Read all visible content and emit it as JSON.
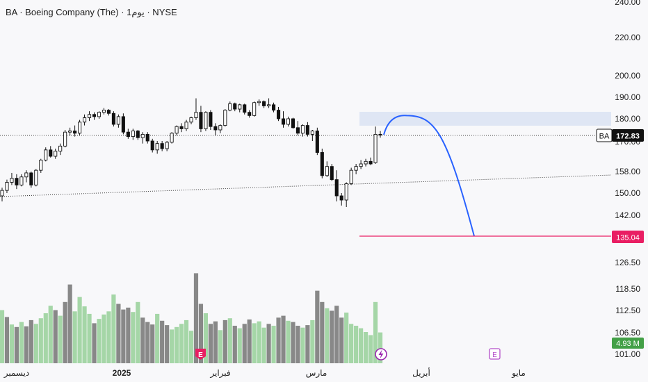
{
  "header": {
    "title": "BA · Boeing Company (The) · 1يوم · NYSE"
  },
  "colors": {
    "background": "#f8f8fa",
    "up_candle": "#ffffff",
    "down_candle": "#111111",
    "volume_up": "#a5d6a7",
    "volume_down": "#888888",
    "projection_curve": "#2962ff",
    "target_line": "#e91e63",
    "resistance_zone": "#dbe3f3",
    "price_badge": "#111111",
    "volume_badge": "#43a047",
    "earnings_marker_past": "#e91e63",
    "earnings_marker_future": "#b44fc9"
  },
  "chart_data": {
    "type": "candlestick",
    "symbol": "BA",
    "price_axis_ticks": [
      "240.00",
      "220.00",
      "200.00",
      "190.00",
      "180.00",
      "170.00",
      "158.00",
      "150.00",
      "142.00",
      "135.04",
      "126.50",
      "118.50",
      "112.50",
      "106.50",
      "101.00"
    ],
    "time_axis_labels": [
      "ديسمبر",
      "2025",
      "فبراير",
      "مارس",
      "أبريل",
      "مايو"
    ],
    "last_price": {
      "symbol": "BA",
      "value": "172.83"
    },
    "target_price": "135.04",
    "volume_label": "4.93 M",
    "earnings_markers": [
      "E",
      "E"
    ],
    "dividend_marker_icon": "lightning-icon",
    "resistance_zone": [
      177,
      182
    ],
    "projection": {
      "from": 172.8,
      "peak": 181.5,
      "to": 135.04
    },
    "candles": [
      [
        149.0,
        152.0,
        147.0,
        151.0
      ],
      [
        151.0,
        155.0,
        150.0,
        154.0
      ],
      [
        154.0,
        157.5,
        153.0,
        155.5
      ],
      [
        155.5,
        157.0,
        151.5,
        153.0
      ],
      [
        153.0,
        157.0,
        152.5,
        156.0
      ],
      [
        156.0,
        158.5,
        154.0,
        157.5
      ],
      [
        157.5,
        158.0,
        152.0,
        153.0
      ],
      [
        153.0,
        159.0,
        152.5,
        158.5
      ],
      [
        158.5,
        163.0,
        157.5,
        162.5
      ],
      [
        162.5,
        167.5,
        162.0,
        166.5
      ],
      [
        166.5,
        168.0,
        163.5,
        164.0
      ],
      [
        164.0,
        167.0,
        163.0,
        166.0
      ],
      [
        166.0,
        169.0,
        164.5,
        168.0
      ],
      [
        168.0,
        175.0,
        167.5,
        174.0
      ],
      [
        174.0,
        176.0,
        172.5,
        174.5
      ],
      [
        174.5,
        177.0,
        172.0,
        173.5
      ],
      [
        173.5,
        179.5,
        172.5,
        178.5
      ],
      [
        178.5,
        182.0,
        177.0,
        180.5
      ],
      [
        180.5,
        183.5,
        179.0,
        182.0
      ],
      [
        182.0,
        183.0,
        179.5,
        181.0
      ],
      [
        181.0,
        183.5,
        180.0,
        183.0
      ],
      [
        183.0,
        185.0,
        182.0,
        184.0
      ],
      [
        184.0,
        184.5,
        181.5,
        182.5
      ],
      [
        182.5,
        183.5,
        176.5,
        177.5
      ],
      [
        177.5,
        182.0,
        176.0,
        181.0
      ],
      [
        181.0,
        182.5,
        173.0,
        174.0
      ],
      [
        174.0,
        175.5,
        171.0,
        172.0
      ],
      [
        172.0,
        175.5,
        170.5,
        174.5
      ],
      [
        174.5,
        175.0,
        170.5,
        171.5
      ],
      [
        171.5,
        174.0,
        169.0,
        173.0
      ],
      [
        173.0,
        174.0,
        169.0,
        170.0
      ],
      [
        170.0,
        171.0,
        165.5,
        166.5
      ],
      [
        166.5,
        170.0,
        165.0,
        169.0
      ],
      [
        169.0,
        170.0,
        166.0,
        167.0
      ],
      [
        167.0,
        170.0,
        166.0,
        169.5
      ],
      [
        169.5,
        174.0,
        169.0,
        173.5
      ],
      [
        173.5,
        177.0,
        172.5,
        176.5
      ],
      [
        176.5,
        178.0,
        174.0,
        175.5
      ],
      [
        175.5,
        179.5,
        174.5,
        178.5
      ],
      [
        178.5,
        181.0,
        177.5,
        180.5
      ],
      [
        180.5,
        189.5,
        179.5,
        183.0
      ],
      [
        183.0,
        186.0,
        174.0,
        175.5
      ],
      [
        175.5,
        183.5,
        174.5,
        183.0
      ],
      [
        183.0,
        184.0,
        175.0,
        176.5
      ],
      [
        176.5,
        178.0,
        172.5,
        175.0
      ],
      [
        175.0,
        177.5,
        173.5,
        177.0
      ],
      [
        177.0,
        184.5,
        176.5,
        184.0
      ],
      [
        184.0,
        188.0,
        183.5,
        187.0
      ],
      [
        187.0,
        187.5,
        183.5,
        184.5
      ],
      [
        184.5,
        187.0,
        183.0,
        186.5
      ],
      [
        186.5,
        187.0,
        182.0,
        183.0
      ],
      [
        183.0,
        184.0,
        180.5,
        181.5
      ],
      [
        181.5,
        188.0,
        181.0,
        187.5
      ],
      [
        187.5,
        189.0,
        186.0,
        188.0
      ],
      [
        188.0,
        188.5,
        185.0,
        186.0
      ],
      [
        186.0,
        189.5,
        185.0,
        186.5
      ],
      [
        186.5,
        187.5,
        183.0,
        184.0
      ],
      [
        184.0,
        185.5,
        179.0,
        180.0
      ],
      [
        180.0,
        183.5,
        176.0,
        177.5
      ],
      [
        177.5,
        181.0,
        176.5,
        180.0
      ],
      [
        180.0,
        180.5,
        175.5,
        176.0
      ],
      [
        176.0,
        179.0,
        172.5,
        173.5
      ],
      [
        173.5,
        177.5,
        172.0,
        177.0
      ],
      [
        177.0,
        178.5,
        172.0,
        173.0
      ],
      [
        173.0,
        175.0,
        170.0,
        174.5
      ],
      [
        174.5,
        176.0,
        164.5,
        165.5
      ],
      [
        165.5,
        167.0,
        155.5,
        156.5
      ],
      [
        156.5,
        162.0,
        156.0,
        160.0
      ],
      [
        160.0,
        161.0,
        154.5,
        155.0
      ],
      [
        155.0,
        158.5,
        147.0,
        149.0
      ],
      [
        149.0,
        150.0,
        145.5,
        147.5
      ],
      [
        147.5,
        154.0,
        145.0,
        153.5
      ],
      [
        153.5,
        159.5,
        153.0,
        158.5
      ],
      [
        158.5,
        161.0,
        157.0,
        160.0
      ],
      [
        160.0,
        162.5,
        159.0,
        161.0
      ],
      [
        161.0,
        163.0,
        160.0,
        162.0
      ],
      [
        162.0,
        163.5,
        160.5,
        161.0
      ],
      [
        161.5,
        176.5,
        161.0,
        173.0
      ],
      [
        173.0,
        174.5,
        171.5,
        172.8
      ]
    ],
    "volumes": [
      [
        8.5,
        0
      ],
      [
        7.4,
        1
      ],
      [
        6.2,
        0
      ],
      [
        5.8,
        1
      ],
      [
        6.6,
        0
      ],
      [
        5.9,
        1
      ],
      [
        6.9,
        1
      ],
      [
        6.3,
        0
      ],
      [
        7.2,
        0
      ],
      [
        8.0,
        0
      ],
      [
        9.2,
        0
      ],
      [
        8.5,
        1
      ],
      [
        7.6,
        0
      ],
      [
        9.8,
        1
      ],
      [
        12.6,
        1
      ],
      [
        8.3,
        0
      ],
      [
        10.6,
        0
      ],
      [
        9.1,
        0
      ],
      [
        7.9,
        0
      ],
      [
        6.4,
        1
      ],
      [
        7.1,
        0
      ],
      [
        7.8,
        0
      ],
      [
        8.3,
        0
      ],
      [
        11.0,
        0
      ],
      [
        9.5,
        1
      ],
      [
        8.6,
        1
      ],
      [
        8.9,
        1
      ],
      [
        8.2,
        0
      ],
      [
        9.8,
        0
      ],
      [
        7.3,
        1
      ],
      [
        6.6,
        1
      ],
      [
        6.2,
        1
      ],
      [
        7.9,
        0
      ],
      [
        6.8,
        1
      ],
      [
        6.1,
        1
      ],
      [
        5.4,
        0
      ],
      [
        5.8,
        0
      ],
      [
        6.3,
        0
      ],
      [
        6.9,
        0
      ],
      [
        5.2,
        0
      ],
      [
        14.4,
        1
      ],
      [
        9.5,
        1
      ],
      [
        8.0,
        0
      ],
      [
        6.3,
        1
      ],
      [
        6.7,
        1
      ],
      [
        5.3,
        0
      ],
      [
        6.9,
        1
      ],
      [
        7.2,
        0
      ],
      [
        6.0,
        1
      ],
      [
        5.6,
        0
      ],
      [
        6.3,
        1
      ],
      [
        7.0,
        1
      ],
      [
        6.4,
        0
      ],
      [
        6.7,
        0
      ],
      [
        5.7,
        0
      ],
      [
        6.3,
        1
      ],
      [
        6.0,
        0
      ],
      [
        7.3,
        1
      ],
      [
        7.6,
        1
      ],
      [
        6.8,
        0
      ],
      [
        6.6,
        1
      ],
      [
        6.0,
        1
      ],
      [
        5.7,
        0
      ],
      [
        6.1,
        1
      ],
      [
        6.9,
        0
      ],
      [
        11.6,
        1
      ],
      [
        9.8,
        1
      ],
      [
        8.8,
        0
      ],
      [
        8.4,
        1
      ],
      [
        9.2,
        1
      ],
      [
        7.3,
        1
      ],
      [
        8.1,
        0
      ],
      [
        6.3,
        0
      ],
      [
        6.0,
        0
      ],
      [
        5.6,
        0
      ],
      [
        5.0,
        0
      ],
      [
        4.5,
        0
      ],
      [
        9.8,
        0
      ],
      [
        4.93,
        0
      ]
    ]
  }
}
